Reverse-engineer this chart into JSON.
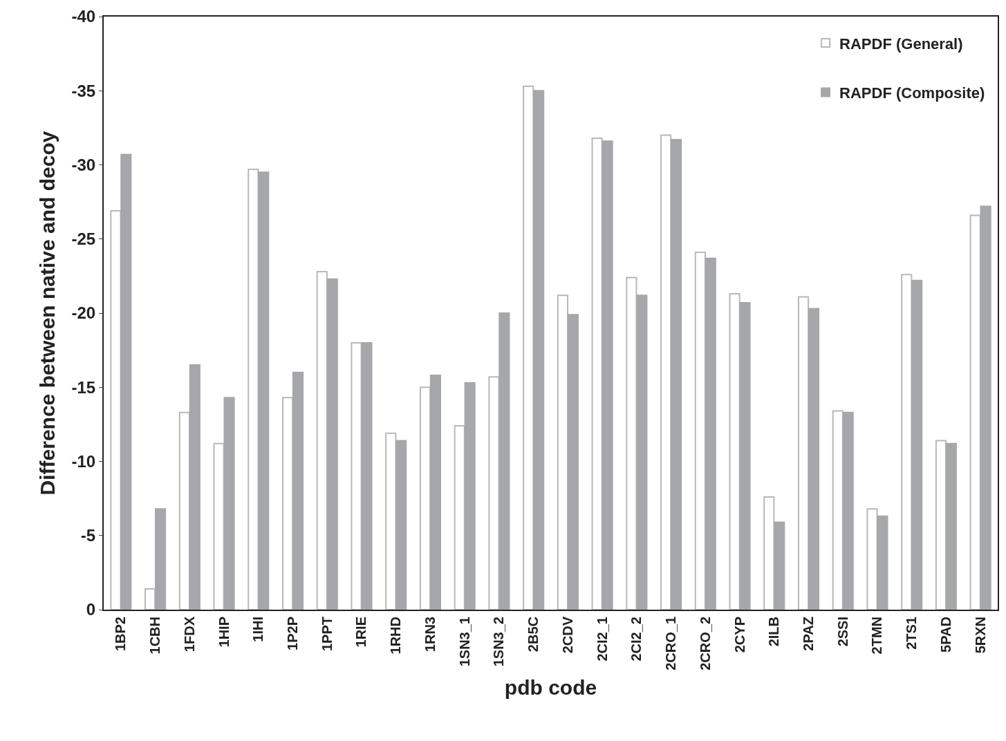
{
  "chart_data": {
    "type": "bar",
    "xlabel": "pdb code",
    "ylabel": "Difference between native and decoy",
    "categories": [
      "1BP2",
      "1CBH",
      "1FDX",
      "1HIP",
      "1IHI",
      "1P2P",
      "1PPT",
      "1RIE",
      "1RHD",
      "1RN3",
      "1SN3_1",
      "1SN3_2",
      "2B5C",
      "2CDV",
      "2CI2_1",
      "2CI2_2",
      "2CRO_1",
      "2CRO_2",
      "2CYP",
      "2ILB",
      "2PAZ",
      "2SSI",
      "2TMN",
      "2TS1",
      "5PAD",
      "5RXN"
    ],
    "series": [
      {
        "name": "RAPDF (General)",
        "color": "#ffffff",
        "values": [
          -26.9,
          -1.4,
          -13.3,
          -11.2,
          -29.7,
          -14.3,
          -22.8,
          -18.0,
          -11.9,
          -15.0,
          -12.4,
          -15.7,
          -35.3,
          -21.2,
          -31.8,
          -22.4,
          -32.0,
          -24.1,
          -21.3,
          -7.6,
          -21.1,
          -13.4,
          -6.8,
          -22.6,
          -11.4,
          -26.6
        ]
      },
      {
        "name": "RAPDF (Composite)",
        "color": "#a6a7ab",
        "values": [
          -30.7,
          -6.8,
          -16.5,
          -14.3,
          -29.5,
          -16.0,
          -22.3,
          -18.0,
          -11.4,
          -15.8,
          -15.3,
          -20.0,
          -35.0,
          -19.9,
          -31.6,
          -21.2,
          -31.7,
          -23.7,
          -20.7,
          -5.9,
          -20.3,
          -13.3,
          -6.3,
          -22.2,
          -11.2,
          -27.2
        ]
      }
    ],
    "ylim": [
      0,
      -40
    ],
    "yticks": [
      0,
      -5,
      -10,
      -15,
      -20,
      -25,
      -30,
      -35,
      -40
    ],
    "legend": "top right"
  }
}
